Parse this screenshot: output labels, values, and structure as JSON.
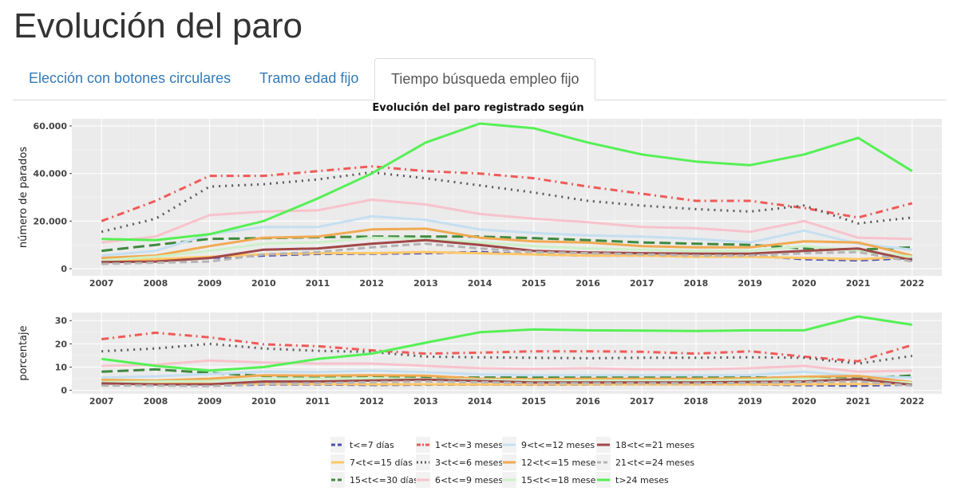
{
  "page": {
    "title": "Evolución del paro"
  },
  "tabs": [
    {
      "label": "Elección con botones circulares",
      "active": false
    },
    {
      "label": "Tramo edad fijo",
      "active": false
    },
    {
      "label": "Tiempo búsqueda empleo fijo",
      "active": true
    }
  ],
  "chart_data": {
    "type": "line",
    "title": "Evolución del paro registrado según",
    "x": [
      2007,
      2008,
      2009,
      2010,
      2011,
      2012,
      2013,
      2014,
      2015,
      2016,
      2017,
      2018,
      2019,
      2020,
      2021,
      2022
    ],
    "legend_position": "bottom",
    "grid": true,
    "panels": [
      {
        "ylabel": "número de parados",
        "ylim": [
          -3000,
          63000
        ],
        "yticks": [
          0,
          20000,
          40000,
          60000
        ],
        "ytick_labels": [
          "0",
          "20.000",
          "40.000",
          "60.000"
        ]
      },
      {
        "ylabel": "porcentaje",
        "ylim": [
          -1.5,
          33.5
        ],
        "yticks": [
          0,
          10,
          20,
          30
        ],
        "ytick_labels": [
          "0",
          "10",
          "20",
          "30"
        ]
      }
    ],
    "series": [
      {
        "name": "t<=7 días",
        "color": "#4a50b0",
        "dash": "dash",
        "values_count": [
          2500,
          3000,
          4500,
          5500,
          6200,
          6300,
          6500,
          7000,
          6000,
          5500,
          5500,
          5000,
          5500,
          4000,
          3500,
          4500
        ],
        "values_pct": [
          2.5,
          2.2,
          2.0,
          2.5,
          2.5,
          2.3,
          2.4,
          2.5,
          2.4,
          2.5,
          2.6,
          2.6,
          2.6,
          2.2,
          2.0,
          2.5
        ]
      },
      {
        "name": "7<t<=15 días",
        "color": "#ffc766",
        "dash": "solid",
        "values_count": [
          3500,
          4000,
          5000,
          6000,
          6500,
          6500,
          7000,
          6500,
          6000,
          5500,
          5500,
          5000,
          5000,
          4500,
          4000,
          5000
        ],
        "values_pct": [
          3.5,
          3.0,
          2.8,
          2.7,
          2.7,
          2.6,
          2.6,
          2.5,
          2.5,
          2.6,
          2.6,
          2.6,
          2.6,
          2.6,
          2.7,
          2.8
        ]
      },
      {
        "name": "15<t<=30 días",
        "color": "#3f8a3f",
        "dash": "longdash",
        "values_count": [
          7500,
          10000,
          12500,
          12800,
          13200,
          13500,
          13500,
          13500,
          12800,
          12000,
          11000,
          10500,
          10000,
          8500,
          8000,
          9000
        ],
        "values_pct": [
          8.0,
          9.0,
          7.5,
          6.2,
          6.0,
          5.8,
          5.5,
          5.5,
          5.5,
          5.6,
          5.6,
          5.6,
          5.6,
          5.2,
          5.0,
          6.4
        ]
      },
      {
        "name": "1<t<=3 meses",
        "color": "#ef5a57",
        "dash": "dashdot",
        "values_count": [
          20000,
          28500,
          39000,
          39000,
          41000,
          43000,
          41000,
          40000,
          38000,
          34500,
          31500,
          28500,
          28500,
          25500,
          21500,
          27500
        ],
        "values_pct": [
          22.0,
          24.8,
          22.8,
          19.8,
          19.0,
          17.2,
          15.8,
          16.2,
          16.8,
          16.8,
          16.6,
          15.8,
          16.8,
          14.5,
          12.5,
          19.5
        ]
      },
      {
        "name": "3<t<=6 meses",
        "color": "#5a5a5a",
        "dash": "dot",
        "values_count": [
          15500,
          21000,
          34500,
          35500,
          37500,
          40500,
          38000,
          35000,
          32000,
          28500,
          26500,
          25000,
          24000,
          26500,
          19000,
          21500
        ],
        "values_pct": [
          16.8,
          18.0,
          20.0,
          18.0,
          17.0,
          16.5,
          14.5,
          14.2,
          14.0,
          13.8,
          14.0,
          14.0,
          14.2,
          14.0,
          11.5,
          14.8
        ]
      },
      {
        "name": "6<t<=9 meses",
        "color": "#f7c3cc",
        "dash": "solid",
        "values_count": [
          11000,
          13500,
          22500,
          24000,
          24500,
          29000,
          27000,
          23000,
          21000,
          19500,
          17500,
          17000,
          15500,
          20000,
          13000,
          12500
        ],
        "values_pct": [
          10.5,
          11.0,
          12.8,
          12.0,
          11.5,
          11.5,
          10.5,
          9.5,
          9.2,
          9.5,
          9.0,
          9.0,
          9.5,
          10.5,
          8.0,
          8.5
        ]
      },
      {
        "name": "9<t<=12 meses",
        "color": "#c5dff0",
        "dash": "solid",
        "values_count": [
          5500,
          7500,
          14500,
          17500,
          17500,
          22000,
          20500,
          16500,
          15000,
          14000,
          13500,
          12500,
          11000,
          16000,
          10500,
          8000
        ],
        "values_pct": [
          5.5,
          6.0,
          7.0,
          8.0,
          7.8,
          8.5,
          7.8,
          6.8,
          6.5,
          6.5,
          6.5,
          6.5,
          6.5,
          8.0,
          6.0,
          5.5
        ]
      },
      {
        "name": "12<t<=15 meses",
        "color": "#f0aa52",
        "dash": "solid",
        "values_count": [
          4500,
          5500,
          9500,
          13000,
          13500,
          16500,
          16800,
          13000,
          11500,
          11000,
          9500,
          9000,
          9000,
          11500,
          11000,
          5500
        ],
        "values_pct": [
          4.5,
          4.2,
          5.0,
          6.5,
          6.3,
          6.5,
          6.3,
          5.0,
          4.8,
          5.0,
          5.0,
          5.0,
          5.2,
          5.8,
          6.2,
          3.5
        ]
      },
      {
        "name": "15<t<=18 meses",
        "color": "#cdf0c8",
        "dash": "solid",
        "values_count": [
          3500,
          5000,
          7500,
          10500,
          11000,
          13000,
          12500,
          11000,
          9500,
          8500,
          8000,
          7500,
          7500,
          9500,
          7500,
          5000
        ],
        "values_pct": [
          3.5,
          3.8,
          4.0,
          5.0,
          5.0,
          5.2,
          4.8,
          4.5,
          4.2,
          4.2,
          4.2,
          4.2,
          4.5,
          5.0,
          4.5,
          3.2
        ]
      },
      {
        "name": "18<t<=21 meses",
        "color": "#a04848",
        "dash": "solid",
        "values_count": [
          2800,
          3000,
          4500,
          8000,
          8500,
          10500,
          12000,
          10000,
          7500,
          6800,
          6500,
          6300,
          6300,
          7500,
          8500,
          3500
        ],
        "values_pct": [
          3.0,
          2.5,
          2.6,
          3.8,
          3.8,
          4.2,
          4.6,
          4.0,
          3.4,
          3.4,
          3.4,
          3.4,
          3.6,
          3.8,
          4.8,
          2.3
        ]
      },
      {
        "name": "21<t<=24 meses",
        "color": "#b5b5b5",
        "dash": "dash",
        "values_count": [
          2000,
          2500,
          3000,
          6000,
          7000,
          9000,
          10500,
          8500,
          7000,
          6500,
          6000,
          5500,
          5500,
          6500,
          7000,
          3000
        ],
        "values_pct": [
          2.0,
          2.0,
          1.8,
          2.8,
          3.0,
          3.5,
          3.8,
          3.5,
          3.0,
          3.0,
          3.0,
          3.0,
          3.2,
          3.5,
          3.8,
          2.0
        ]
      },
      {
        "name": "t>24 meses",
        "color": "#55f055",
        "dash": "solid",
        "values_count": [
          12500,
          12000,
          14500,
          20000,
          29500,
          40000,
          53000,
          61000,
          59000,
          53000,
          48000,
          45000,
          43500,
          48000,
          55000,
          41000
        ],
        "values_pct": [
          13.5,
          10.5,
          8.5,
          10.0,
          13.5,
          15.8,
          20.5,
          25.0,
          26.2,
          25.8,
          25.7,
          25.5,
          25.8,
          25.8,
          31.8,
          28.2
        ]
      }
    ]
  }
}
